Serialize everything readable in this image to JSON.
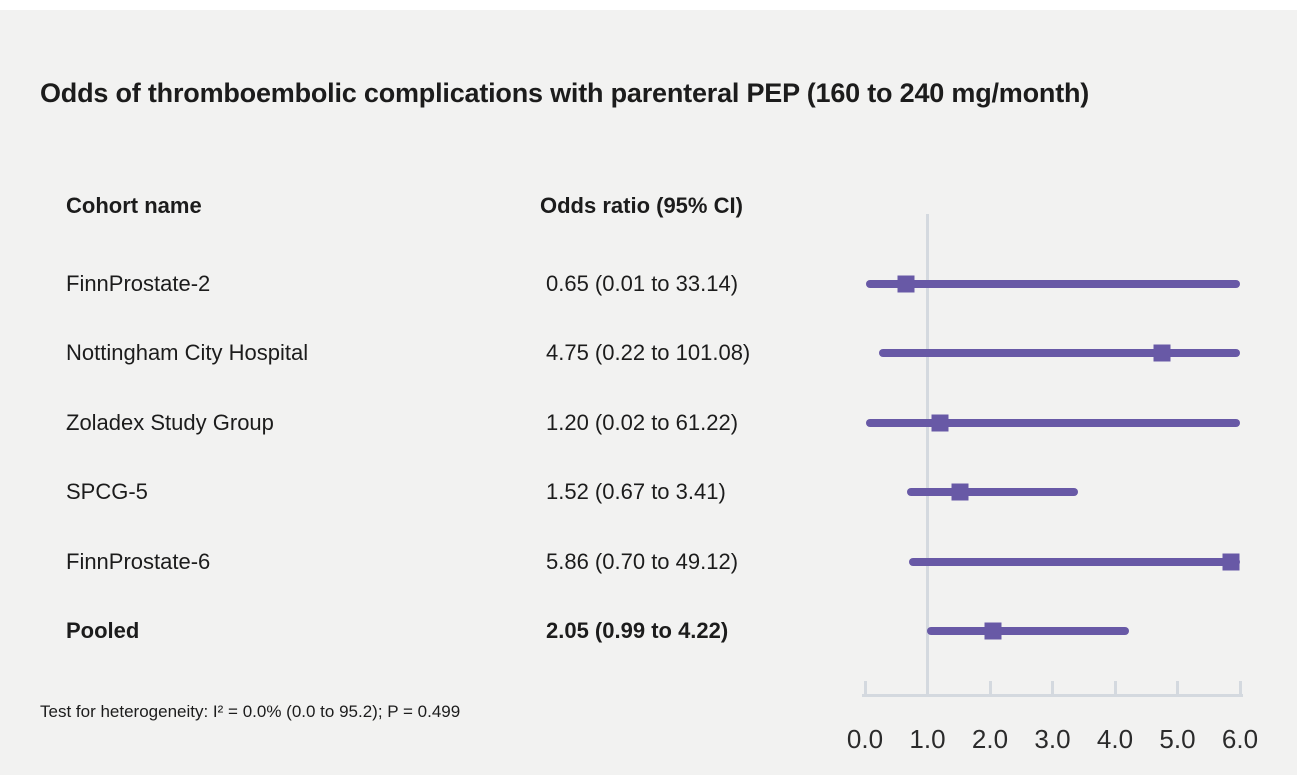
{
  "title": "Odds of thromboembolic complications with parenteral PEP (160 to 240 mg/month)",
  "table": {
    "col1_header": "Cohort name",
    "col2_header": "Odds ratio (95% CI)",
    "rows": [
      {
        "name": "FinnProstate-2",
        "or_text": "0.65 (0.01 to 33.14)",
        "pooled": false
      },
      {
        "name": "Nottingham City Hospital",
        "or_text": "4.75 (0.22 to 101.08)",
        "pooled": false
      },
      {
        "name": "Zoladex Study Group",
        "or_text": "1.20 (0.02 to 61.22)",
        "pooled": false
      },
      {
        "name": "SPCG-5",
        "or_text": "1.52 (0.67 to 3.41)",
        "pooled": false
      },
      {
        "name": "FinnProstate-6",
        "or_text": "5.86 (0.70 to 49.12)",
        "pooled": false
      },
      {
        "name": "Pooled",
        "or_text": "2.05 (0.99 to 4.22)",
        "pooled": true
      }
    ]
  },
  "footnote": "Test for heterogeneity: I² = 0.0% (0.0 to 95.2); P = 0.499",
  "chart_data": {
    "type": "forest",
    "title": "Odds of thromboembolic complications with parenteral PEP (160 to 240 mg/month)",
    "xlim": [
      0.0,
      6.0
    ],
    "reference_line": 1.0,
    "tick_values": [
      0,
      1,
      2,
      3,
      4,
      5,
      6
    ],
    "tick_labels": [
      "0.0",
      "1.0",
      "2.0",
      "3.0",
      "4.0",
      "5.0",
      "6.0"
    ],
    "grid": false,
    "marker_shape": "square",
    "series": [
      {
        "name": "FinnProstate-2",
        "odds_ratio": 0.65,
        "ci_low": 0.01,
        "ci_high": 33.14,
        "pooled": false
      },
      {
        "name": "Nottingham City Hospital",
        "odds_ratio": 4.75,
        "ci_low": 0.22,
        "ci_high": 101.08,
        "pooled": false
      },
      {
        "name": "Zoladex Study Group",
        "odds_ratio": 1.2,
        "ci_low": 0.02,
        "ci_high": 61.22,
        "pooled": false
      },
      {
        "name": "SPCG-5",
        "odds_ratio": 1.52,
        "ci_low": 0.67,
        "ci_high": 3.41,
        "pooled": false
      },
      {
        "name": "FinnProstate-6",
        "odds_ratio": 5.86,
        "ci_low": 0.7,
        "ci_high": 49.12,
        "pooled": false
      },
      {
        "name": "Pooled",
        "odds_ratio": 2.05,
        "ci_low": 0.99,
        "ci_high": 4.22,
        "pooled": true
      }
    ],
    "colors": {
      "marker": "#6859A6",
      "ci_line": "#6859A6",
      "axis": "#D4D9DF",
      "text": "#1C1C1C",
      "background": "#F2F2F1"
    }
  }
}
